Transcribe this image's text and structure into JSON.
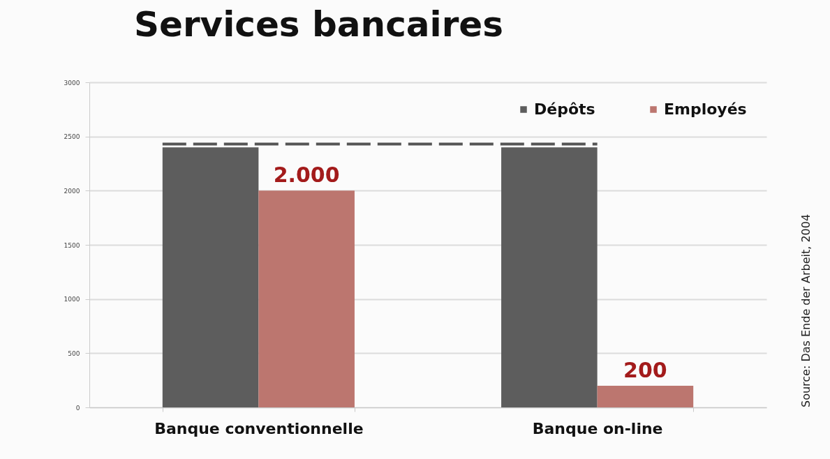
{
  "chart_data": {
    "type": "bar",
    "title": "Services bancaires",
    "categories": [
      "Banque conventionnelle",
      "Banque on-line"
    ],
    "series": [
      {
        "name": "Dépôts",
        "color": "#5d5d5d",
        "values": [
          2400,
          2400
        ]
      },
      {
        "name": "Employés",
        "color": "#bc766f",
        "values": [
          2000,
          200
        ],
        "value_labels": [
          "2.000",
          "200"
        ]
      }
    ],
    "ylim": [
      0,
      3000
    ],
    "yticks": [
      0,
      500,
      1000,
      1500,
      2000,
      2500,
      3000
    ],
    "grid": "y",
    "legend": "top right",
    "ref_lines": [
      {
        "axis": "y",
        "value": 2430,
        "color": "#555555",
        "line_style": "dashed"
      }
    ],
    "annotations": [
      "Source: Das Ende der Arbeit, 2004"
    ]
  }
}
